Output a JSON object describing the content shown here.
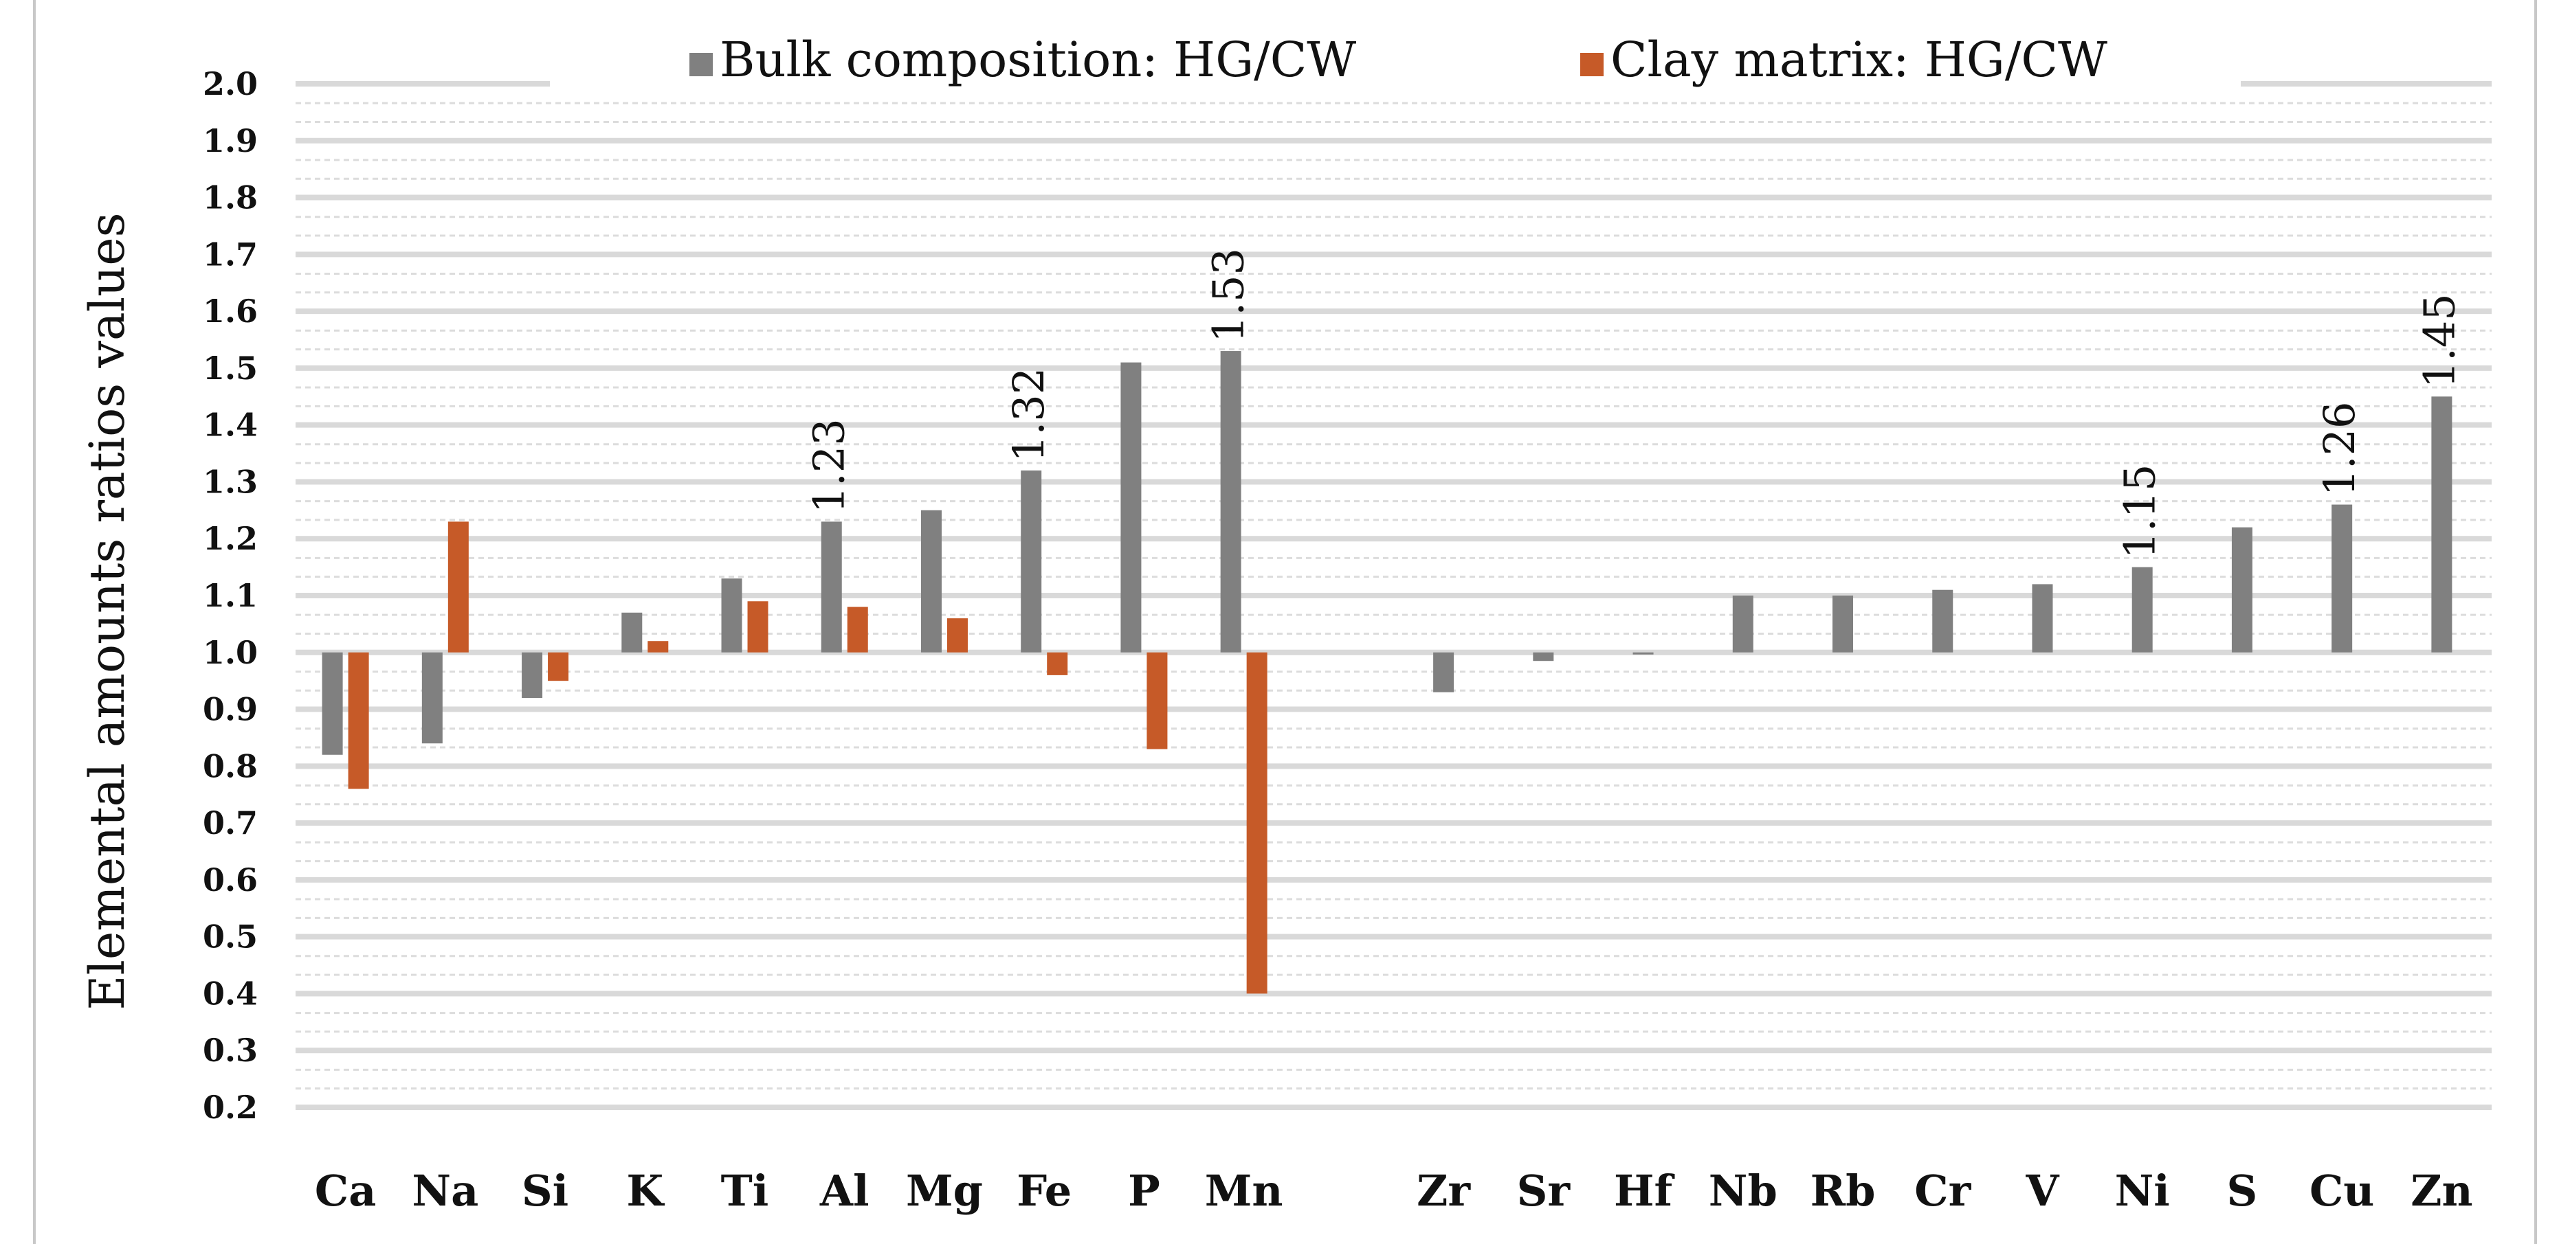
{
  "chart_data": {
    "type": "bar",
    "title": "",
    "xlabel": "",
    "ylabel": "Elemental amounts ratios values",
    "ylim": [
      0.2,
      2.0
    ],
    "yticks": [
      "0.2",
      "0.3",
      "0.4",
      "0.5",
      "0.6",
      "0.7",
      "0.8",
      "0.9",
      "1.0",
      "1.1",
      "1.2",
      "1.3",
      "1.4",
      "1.5",
      "1.6",
      "1.7",
      "1.8",
      "1.9",
      "2.0"
    ],
    "baseline": 1.0,
    "grid": true,
    "legend_position": "top",
    "categories": [
      "Ca",
      "Na",
      "Si",
      "K",
      "Ti",
      "Al",
      "Mg",
      "Fe",
      "P",
      "Mn",
      "",
      "Zr",
      "Sr",
      "Hf",
      "Nb",
      "Rb",
      "Cr",
      "V",
      "Ni",
      "S",
      "Cu",
      "Zn"
    ],
    "series": [
      {
        "name": "Bulk composition: HG/CW",
        "color": "#808080",
        "values": [
          0.82,
          0.84,
          0.92,
          1.07,
          1.13,
          1.23,
          1.25,
          1.32,
          1.51,
          1.53,
          null,
          0.93,
          0.985,
          1.0,
          1.1,
          1.1,
          1.11,
          1.12,
          1.15,
          1.22,
          1.26,
          1.45
        ]
      },
      {
        "name": "Clay matrix: HG/CW",
        "color": "#C65A28",
        "values": [
          0.76,
          1.23,
          0.95,
          1.02,
          1.09,
          1.08,
          1.06,
          0.96,
          0.83,
          0.4,
          null,
          null,
          null,
          null,
          null,
          null,
          null,
          null,
          null,
          null,
          null,
          null
        ]
      }
    ],
    "data_labels": [
      {
        "category": "Al",
        "series": 0,
        "text": "1.23"
      },
      {
        "category": "Fe",
        "series": 0,
        "text": "1.32"
      },
      {
        "category": "Mn",
        "series": 0,
        "text": "1.53"
      },
      {
        "category": "Ni",
        "series": 0,
        "text": "1.15"
      },
      {
        "category": "Cu",
        "series": 0,
        "text": "1.26"
      },
      {
        "category": "Zn",
        "series": 0,
        "text": "1.45"
      }
    ]
  }
}
